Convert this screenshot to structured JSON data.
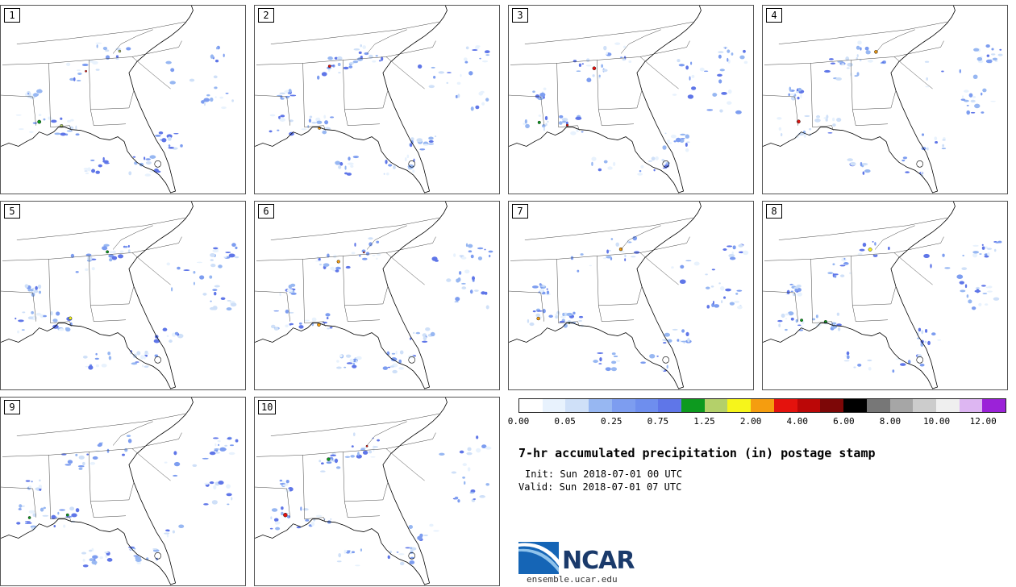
{
  "panels": [
    {
      "label": "1"
    },
    {
      "label": "2"
    },
    {
      "label": "3"
    },
    {
      "label": "4"
    },
    {
      "label": "5"
    },
    {
      "label": "6"
    },
    {
      "label": "7"
    },
    {
      "label": "8"
    },
    {
      "label": "9"
    },
    {
      "label": "10"
    }
  ],
  "colorbar": {
    "colors": [
      "#ffffff",
      "#e8f2fd",
      "#cfe0f8",
      "#97b7f2",
      "#7d9df0",
      "#6e8eee",
      "#5f76e8",
      "#0d9a1f",
      "#b4d06a",
      "#f6f51b",
      "#f59d0f",
      "#e4120d",
      "#bb0707",
      "#7d0707",
      "#000000",
      "#777777",
      "#a6a6a6",
      "#cccccc",
      "#efefef",
      "#ddb6f2",
      "#9b22d8"
    ],
    "tick_labels": [
      "0.00",
      "0.05",
      "0.25",
      "0.75",
      "1.25",
      "2.00",
      "4.00",
      "6.00",
      "8.00",
      "10.00",
      "12.00"
    ]
  },
  "title": "7-hr accumulated precipitation (in) postage stamp",
  "init_text": "Init: Sun 2018-07-01 00 UTC",
  "valid_text": "Valid: Sun 2018-07-01 07 UTC",
  "logo": {
    "text": "NCAR",
    "url": "ensemble.ucar.edu"
  }
}
